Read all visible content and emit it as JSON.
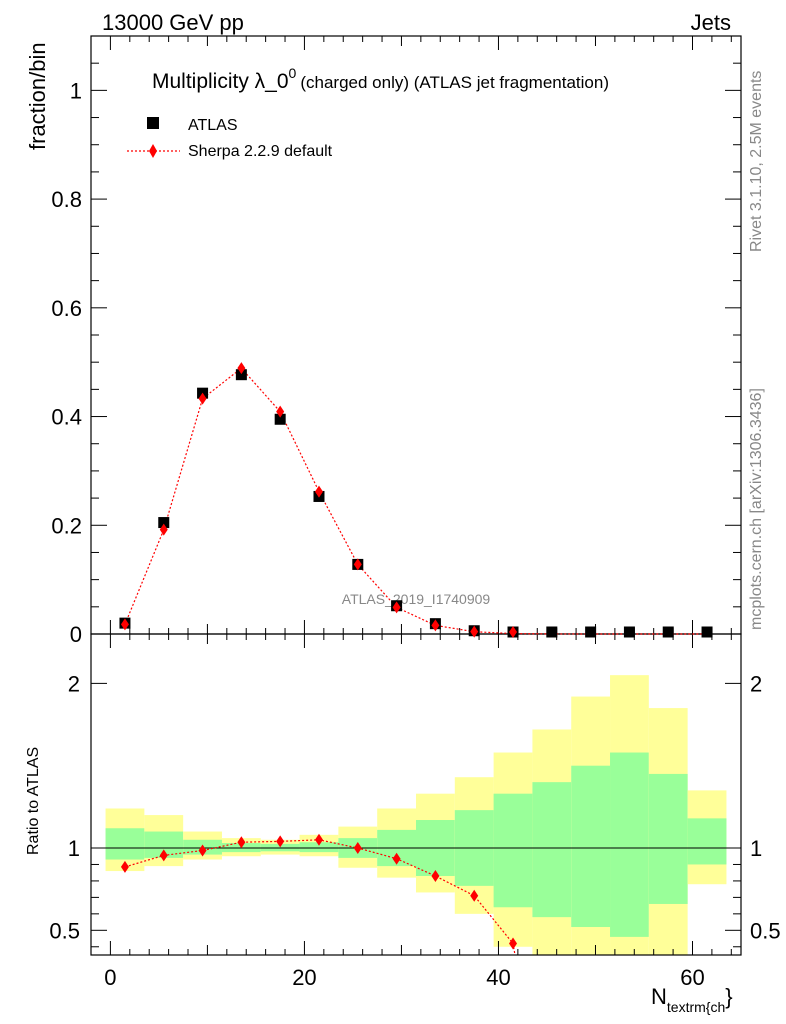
{
  "header": {
    "left": "13000 GeV pp",
    "right": "Jets"
  },
  "side": {
    "rivet": "Rivet 3.1.10,  2.5M events",
    "mcplots": "mcplots.cern.ch [arXiv:1306.3436]"
  },
  "chart_data": {
    "type": "scatter",
    "title": "Multiplicity λ_0",
    "title_sup": "0",
    "title_suffix": "(charged only) (ATLAS jet fragmentation)",
    "watermark": "ATLAS_2019_I1740909",
    "xlabel_main": "N",
    "xlabel_sub": "textrm{ch",
    "xlabel_close": "}",
    "ylabel_main": "fraction/bin",
    "ylabel_ratio": "Ratio to ATLAS",
    "xlim": [
      -2,
      65
    ],
    "main_ylim": [
      0,
      1.1
    ],
    "ratio_ylim": [
      0.35,
      2.3
    ],
    "x_ticks": [
      0,
      20,
      40,
      60
    ],
    "x_tick_labels": [
      "0",
      "20",
      "40",
      "60"
    ],
    "main_y_ticks": [
      0,
      0.2,
      0.4,
      0.6,
      0.8,
      1
    ],
    "main_y_tick_labels": [
      "0",
      "0.2",
      "0.4",
      "0.6",
      "0.8",
      "1"
    ],
    "ratio_y_ticks": [
      0.5,
      1,
      2
    ],
    "ratio_y_tick_labels": [
      "0.5",
      "1",
      "2"
    ],
    "legend": {
      "position": "top-left",
      "entries": [
        {
          "label": "ATLAS",
          "color": "#000000",
          "marker": "square"
        },
        {
          "label": "Sherpa 2.2.9 default",
          "color": "#ff0000",
          "marker": "diamond"
        }
      ]
    },
    "bins": [
      [
        -0.5,
        3.5
      ],
      [
        3.5,
        7.5
      ],
      [
        7.5,
        11.5
      ],
      [
        11.5,
        15.5
      ],
      [
        15.5,
        19.5
      ],
      [
        19.5,
        23.5
      ],
      [
        23.5,
        27.5
      ],
      [
        27.5,
        31.5
      ],
      [
        31.5,
        35.5
      ],
      [
        35.5,
        39.5
      ],
      [
        39.5,
        43.5
      ],
      [
        43.5,
        47.5
      ],
      [
        47.5,
        51.5
      ],
      [
        51.5,
        55.5
      ],
      [
        55.5,
        59.5
      ],
      [
        59.5,
        63.5
      ]
    ],
    "x": [
      1.5,
      5.5,
      9.5,
      13.5,
      17.5,
      21.5,
      25.5,
      29.5,
      33.5,
      37.5,
      41.5,
      45.5,
      49.5,
      53.5,
      57.5,
      61.5
    ],
    "series": [
      {
        "name": "ATLAS",
        "color": "#000000",
        "values": [
          0.02,
          0.205,
          0.443,
          0.477,
          0.395,
          0.253,
          0.128,
          0.052,
          0.019,
          0.006,
          0.002,
          0.001,
          0.0004,
          0.0002,
          0.0001,
          5e-05
        ]
      },
      {
        "name": "Sherpa 2.2.9 default",
        "color": "#ff0000",
        "values": [
          0.0178,
          0.192,
          0.433,
          0.489,
          0.409,
          0.262,
          0.128,
          0.049,
          0.0159,
          0.0043,
          0.0008,
          0.0001,
          3e-05,
          1e-05,
          3e-06,
          6e-07
        ],
        "ratio": [
          0.885,
          0.955,
          0.985,
          1.035,
          1.04,
          1.05,
          1.0,
          0.935,
          0.83,
          0.71,
          0.42
        ]
      }
    ],
    "bands": {
      "yellow_color": "#ffff99",
      "green_color": "#99ff99",
      "yellow_up": [
        1.24,
        1.2,
        1.1,
        1.06,
        1.05,
        1.08,
        1.13,
        1.24,
        1.33,
        1.43,
        1.58,
        1.72,
        1.92,
        2.05,
        1.85,
        1.35
      ],
      "yellow_down": [
        0.86,
        0.89,
        0.93,
        0.95,
        0.96,
        0.95,
        0.88,
        0.82,
        0.73,
        0.6,
        0.4,
        0.35,
        0.35,
        0.35,
        0.35,
        0.78
      ],
      "green_up": [
        1.12,
        1.1,
        1.05,
        1.03,
        1.025,
        1.035,
        1.06,
        1.11,
        1.17,
        1.23,
        1.33,
        1.4,
        1.5,
        1.58,
        1.45,
        1.18
      ],
      "green_down": [
        0.93,
        0.94,
        0.96,
        0.975,
        0.98,
        0.975,
        0.94,
        0.89,
        0.83,
        0.77,
        0.64,
        0.58,
        0.52,
        0.46,
        0.66,
        0.9
      ]
    }
  }
}
